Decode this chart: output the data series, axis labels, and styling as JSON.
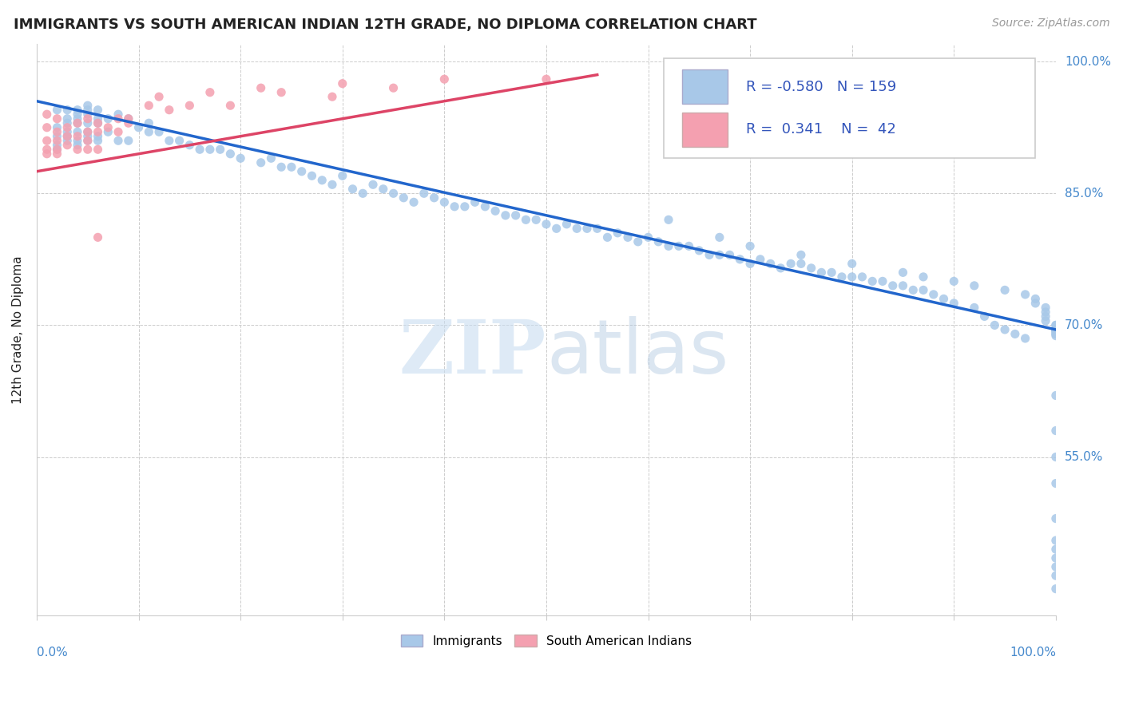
{
  "title": "IMMIGRANTS VS SOUTH AMERICAN INDIAN 12TH GRADE, NO DIPLOMA CORRELATION CHART",
  "source": "Source: ZipAtlas.com",
  "ylabel": "12th Grade, No Diploma",
  "watermark_zip": "ZIP",
  "watermark_atlas": "atlas",
  "legend_blue_label": "Immigrants",
  "legend_pink_label": "South American Indians",
  "blue_color": "#a8c8e8",
  "pink_color": "#f4a0b0",
  "trend_blue": "#2266cc",
  "trend_pink": "#dd4466",
  "blue_scatter_x": [
    0.02,
    0.02,
    0.02,
    0.02,
    0.02,
    0.03,
    0.03,
    0.03,
    0.03,
    0.03,
    0.03,
    0.04,
    0.04,
    0.04,
    0.04,
    0.04,
    0.04,
    0.04,
    0.05,
    0.05,
    0.05,
    0.05,
    0.05,
    0.05,
    0.05,
    0.06,
    0.06,
    0.06,
    0.06,
    0.06,
    0.07,
    0.07,
    0.08,
    0.08,
    0.09,
    0.09,
    0.1,
    0.11,
    0.11,
    0.12,
    0.13,
    0.14,
    0.15,
    0.16,
    0.17,
    0.18,
    0.19,
    0.2,
    0.22,
    0.23,
    0.24,
    0.25,
    0.26,
    0.27,
    0.28,
    0.29,
    0.3,
    0.31,
    0.32,
    0.33,
    0.34,
    0.35,
    0.36,
    0.37,
    0.38,
    0.39,
    0.4,
    0.41,
    0.42,
    0.43,
    0.44,
    0.45,
    0.46,
    0.47,
    0.48,
    0.49,
    0.5,
    0.51,
    0.52,
    0.53,
    0.54,
    0.55,
    0.56,
    0.57,
    0.58,
    0.59,
    0.6,
    0.61,
    0.62,
    0.63,
    0.64,
    0.65,
    0.66,
    0.67,
    0.68,
    0.69,
    0.7,
    0.71,
    0.72,
    0.73,
    0.74,
    0.75,
    0.76,
    0.77,
    0.78,
    0.79,
    0.8,
    0.81,
    0.82,
    0.83,
    0.84,
    0.85,
    0.86,
    0.87,
    0.88,
    0.89,
    0.9,
    0.92,
    0.93,
    0.94,
    0.95,
    0.96,
    0.97,
    0.62,
    0.67,
    0.7,
    0.75,
    0.8,
    0.85,
    0.87,
    0.9,
    0.92,
    0.95,
    0.97,
    0.98,
    0.98,
    0.99,
    0.99,
    0.99,
    0.99,
    1.0,
    1.0,
    1.0,
    1.0,
    1.0,
    1.0,
    1.0,
    1.0,
    1.0,
    1.0,
    1.0,
    1.0,
    1.0,
    1.0,
    1.0,
    1.0,
    1.0,
    1.0,
    1.0,
    1.0,
    1.0
  ],
  "blue_scatter_y": [
    0.945,
    0.925,
    0.915,
    0.905,
    0.9,
    0.945,
    0.935,
    0.93,
    0.92,
    0.915,
    0.91,
    0.945,
    0.94,
    0.935,
    0.93,
    0.92,
    0.91,
    0.905,
    0.95,
    0.945,
    0.94,
    0.93,
    0.92,
    0.915,
    0.91,
    0.945,
    0.935,
    0.93,
    0.915,
    0.91,
    0.935,
    0.92,
    0.94,
    0.91,
    0.935,
    0.91,
    0.925,
    0.93,
    0.92,
    0.92,
    0.91,
    0.91,
    0.905,
    0.9,
    0.9,
    0.9,
    0.895,
    0.89,
    0.885,
    0.89,
    0.88,
    0.88,
    0.875,
    0.87,
    0.865,
    0.86,
    0.87,
    0.855,
    0.85,
    0.86,
    0.855,
    0.85,
    0.845,
    0.84,
    0.85,
    0.845,
    0.84,
    0.835,
    0.835,
    0.84,
    0.835,
    0.83,
    0.825,
    0.825,
    0.82,
    0.82,
    0.815,
    0.81,
    0.815,
    0.81,
    0.81,
    0.81,
    0.8,
    0.805,
    0.8,
    0.795,
    0.8,
    0.795,
    0.79,
    0.79,
    0.79,
    0.785,
    0.78,
    0.78,
    0.78,
    0.775,
    0.77,
    0.775,
    0.77,
    0.765,
    0.77,
    0.77,
    0.765,
    0.76,
    0.76,
    0.755,
    0.755,
    0.755,
    0.75,
    0.75,
    0.745,
    0.745,
    0.74,
    0.74,
    0.735,
    0.73,
    0.725,
    0.72,
    0.71,
    0.7,
    0.695,
    0.69,
    0.685,
    0.82,
    0.8,
    0.79,
    0.78,
    0.77,
    0.76,
    0.755,
    0.75,
    0.745,
    0.74,
    0.735,
    0.73,
    0.725,
    0.72,
    0.715,
    0.71,
    0.705,
    0.7,
    0.695,
    0.695,
    0.693,
    0.69,
    0.7,
    0.695,
    0.693,
    0.69,
    0.688,
    0.62,
    0.58,
    0.55,
    0.52,
    0.48,
    0.455,
    0.445,
    0.435,
    0.425,
    0.415,
    0.4,
    0.39
  ],
  "pink_scatter_x": [
    0.01,
    0.01,
    0.01,
    0.01,
    0.01,
    0.02,
    0.02,
    0.02,
    0.02,
    0.02,
    0.03,
    0.03,
    0.03,
    0.04,
    0.04,
    0.04,
    0.05,
    0.05,
    0.05,
    0.05,
    0.06,
    0.06,
    0.06,
    0.07,
    0.08,
    0.08,
    0.09,
    0.09,
    0.11,
    0.12,
    0.13,
    0.15,
    0.17,
    0.19,
    0.22,
    0.24,
    0.29,
    0.3,
    0.35,
    0.4,
    0.5,
    0.06
  ],
  "pink_scatter_y": [
    0.94,
    0.925,
    0.91,
    0.9,
    0.895,
    0.935,
    0.92,
    0.91,
    0.9,
    0.895,
    0.925,
    0.915,
    0.905,
    0.93,
    0.915,
    0.9,
    0.935,
    0.92,
    0.91,
    0.9,
    0.93,
    0.92,
    0.9,
    0.925,
    0.935,
    0.92,
    0.935,
    0.93,
    0.95,
    0.96,
    0.945,
    0.95,
    0.965,
    0.95,
    0.97,
    0.965,
    0.96,
    0.975,
    0.97,
    0.98,
    0.98,
    0.8
  ],
  "blue_trend_x": [
    0.0,
    1.0
  ],
  "blue_trend_y": [
    0.955,
    0.695
  ],
  "pink_trend_x": [
    0.0,
    0.55
  ],
  "pink_trend_y": [
    0.875,
    0.985
  ],
  "xlim": [
    0.0,
    1.0
  ],
  "ylim": [
    0.37,
    1.02
  ],
  "ytick_vals": [
    1.0,
    0.85,
    0.7,
    0.55
  ],
  "ytick_labels": [
    "100.0%",
    "85.0%",
    "70.0%",
    "55.0%"
  ],
  "legend_r_blue": "-0.580",
  "legend_n_blue": "159",
  "legend_r_pink": "0.341",
  "legend_n_pink": "42",
  "axis_label_color": "#4488cc",
  "text_color_dark": "#222222",
  "source_color": "#999999",
  "legend_text_color": "#3355bb",
  "grid_color": "#cccccc",
  "watermark_color": "#c8ddf0",
  "watermark_alpha": 0.6
}
